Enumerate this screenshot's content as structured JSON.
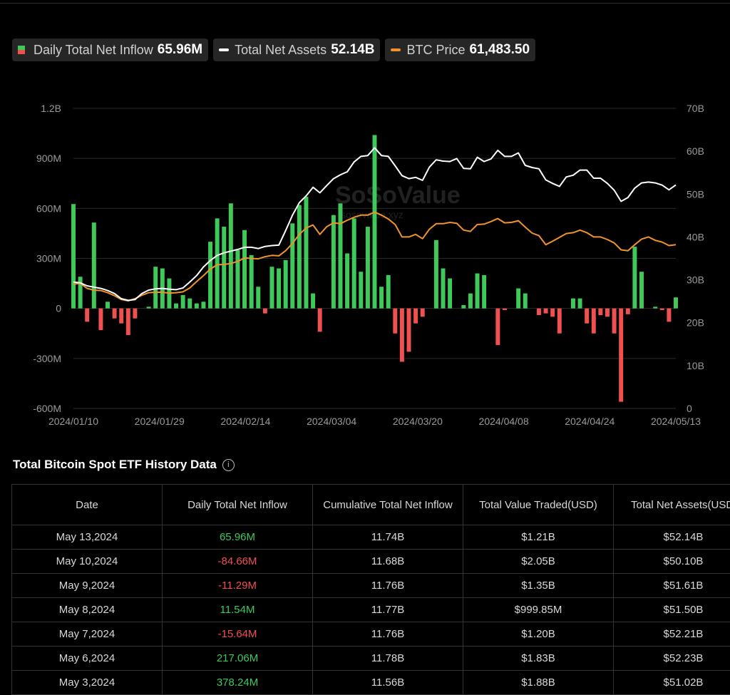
{
  "legend": {
    "inflow_label": "Daily Total Net Inflow",
    "inflow_value": "65.96M",
    "assets_label": "Total Net Assets",
    "assets_value": "52.14B",
    "btc_label": "BTC Price",
    "btc_value": "61,483.50"
  },
  "watermark": {
    "brand": "SoSoValue",
    "url": "sosovalue.xyz"
  },
  "colors": {
    "positive": "#3fc95a",
    "negative": "#f05050",
    "assets_line": "#ffffff",
    "btc_line": "#f0932b",
    "background": "#000000"
  },
  "chart_data": {
    "type": "bar",
    "x_tick_labels": [
      "2024/01/10",
      "2024/01/29",
      "2024/02/14",
      "2024/03/04",
      "2024/03/20",
      "2024/04/08",
      "2024/04/24",
      "2024/05/13"
    ],
    "y_left": {
      "ylim": [
        -600,
        1200
      ],
      "unit": "M",
      "tick_labels": [
        "-600M",
        "-300M",
        "0",
        "300M",
        "600M",
        "900M",
        "1.2B"
      ]
    },
    "y_right": {
      "ylim": [
        0,
        70
      ],
      "unit": "B",
      "tick_labels": [
        "0",
        "10B",
        "20B",
        "30B",
        "40B",
        "50B",
        "60B",
        "70B"
      ]
    },
    "grid": true,
    "series": [
      {
        "name": "Daily Total Net Inflow",
        "kind": "bar",
        "axis": "left",
        "values": [
          626,
          190,
          -80,
          515,
          -130,
          40,
          -60,
          -90,
          -160,
          -60,
          0,
          10,
          250,
          240,
          180,
          30,
          80,
          60,
          30,
          40,
          400,
          540,
          490,
          630,
          350,
          470,
          320,
          130,
          -30,
          250,
          240,
          290,
          510,
          620,
          670,
          90,
          -140,
          0,
          560,
          630,
          330,
          540,
          220,
          490,
          1040,
          130,
          200,
          -150,
          -320,
          -260,
          -90,
          -50,
          0,
          410,
          240,
          180,
          0,
          20,
          90,
          210,
          200,
          0,
          -220,
          -10,
          0,
          120,
          90,
          0,
          -40,
          -30,
          -50,
          -150,
          0,
          60,
          60,
          -90,
          -150,
          -40,
          -50,
          -150,
          -560,
          -35,
          370,
          220,
          0,
          10,
          -10,
          -80,
          66
        ]
      },
      {
        "name": "Total Net Assets",
        "kind": "line",
        "axis": "right",
        "values": [
          29.5,
          29.3,
          28.6,
          28.3,
          28.0,
          27.5,
          26.8,
          25.6,
          25.2,
          25.4,
          26.8,
          27.6,
          27.9,
          28.0,
          27.8,
          27.7,
          28.1,
          29.5,
          31.0,
          33.0,
          34.5,
          35.7,
          36.3,
          36.7,
          37.1,
          37.6,
          37.6,
          37.3,
          37.8,
          38.0,
          38.1,
          41.5,
          45.1,
          48.0,
          49.6,
          51.6,
          50.3,
          52.0,
          53.6,
          54.5,
          55.2,
          57.5,
          58.8,
          59.0,
          60.8,
          59.0,
          58.8,
          56.6,
          54.3,
          53.6,
          53.9,
          53.2,
          56.3,
          58.0,
          57.7,
          57.6,
          58.3,
          56.0,
          55.9,
          58.6,
          57.6,
          58.2,
          60.2,
          58.8,
          58.8,
          59.6,
          56.7,
          56.2,
          55.9,
          53.3,
          52.5,
          51.8,
          54.0,
          54.4,
          55.6,
          55.6,
          53.7,
          53.7,
          52.5,
          50.9,
          48.3,
          49.2,
          51.4,
          52.6,
          52.8,
          52.6,
          52.1,
          51.0,
          52.14
        ]
      },
      {
        "name": "BTC Price",
        "kind": "line",
        "axis": "right",
        "note": "normalized to right axis",
        "values": [
          29.0,
          29.2,
          28.0,
          27.6,
          27.5,
          27.0,
          26.3,
          25.4,
          25.1,
          25.6,
          26.4,
          27.0,
          27.1,
          27.1,
          26.9,
          27.0,
          27.2,
          28.1,
          29.6,
          31.0,
          32.5,
          33.5,
          33.6,
          33.8,
          34.3,
          35.1,
          35.0,
          34.9,
          35.4,
          35.7,
          35.6,
          36.8,
          38.5,
          40.6,
          42.1,
          42.8,
          40.6,
          42.4,
          43.3,
          43.1,
          43.9,
          44.6,
          45.1,
          45.1,
          45.8,
          45.1,
          44.2,
          42.9,
          40.0,
          40.0,
          40.6,
          39.6,
          41.8,
          43.1,
          43.1,
          43.4,
          43.2,
          41.6,
          41.3,
          42.9,
          43.0,
          43.6,
          44.3,
          43.3,
          43.4,
          43.8,
          42.3,
          40.9,
          40.3,
          38.2,
          39.0,
          39.9,
          40.8,
          41.0,
          41.6,
          41.0,
          40.0,
          40.0,
          39.4,
          38.6,
          37.0,
          36.8,
          38.2,
          39.5,
          40.0,
          39.2,
          38.8,
          38.0,
          38.2
        ]
      }
    ]
  },
  "table": {
    "title": "Total Bitcoin Spot ETF History Data",
    "columns": [
      "Date",
      "Daily Total Net Inflow",
      "Cumulative Total Net Inflow",
      "Total Value Traded(USD)",
      "Total Net Assets(USD)"
    ],
    "rows": [
      {
        "date": "May 13,2024",
        "inflow": "65.96M",
        "sign": "pos",
        "cumulative": "11.74B",
        "traded": "$1.21B",
        "assets": "$52.14B"
      },
      {
        "date": "May 10,2024",
        "inflow": "-84.66M",
        "sign": "neg",
        "cumulative": "11.68B",
        "traded": "$2.05B",
        "assets": "$50.10B"
      },
      {
        "date": "May 9,2024",
        "inflow": "-11.29M",
        "sign": "neg",
        "cumulative": "11.76B",
        "traded": "$1.35B",
        "assets": "$51.61B"
      },
      {
        "date": "May 8,2024",
        "inflow": "11.54M",
        "sign": "pos",
        "cumulative": "11.77B",
        "traded": "$999.85M",
        "assets": "$51.50B"
      },
      {
        "date": "May 7,2024",
        "inflow": "-15.64M",
        "sign": "neg",
        "cumulative": "11.76B",
        "traded": "$1.20B",
        "assets": "$52.21B"
      },
      {
        "date": "May 6,2024",
        "inflow": "217.06M",
        "sign": "pos",
        "cumulative": "11.78B",
        "traded": "$1.83B",
        "assets": "$52.23B"
      },
      {
        "date": "May 3,2024",
        "inflow": "378.24M",
        "sign": "pos",
        "cumulative": "11.56B",
        "traded": "$1.88B",
        "assets": "$51.02B"
      }
    ]
  }
}
